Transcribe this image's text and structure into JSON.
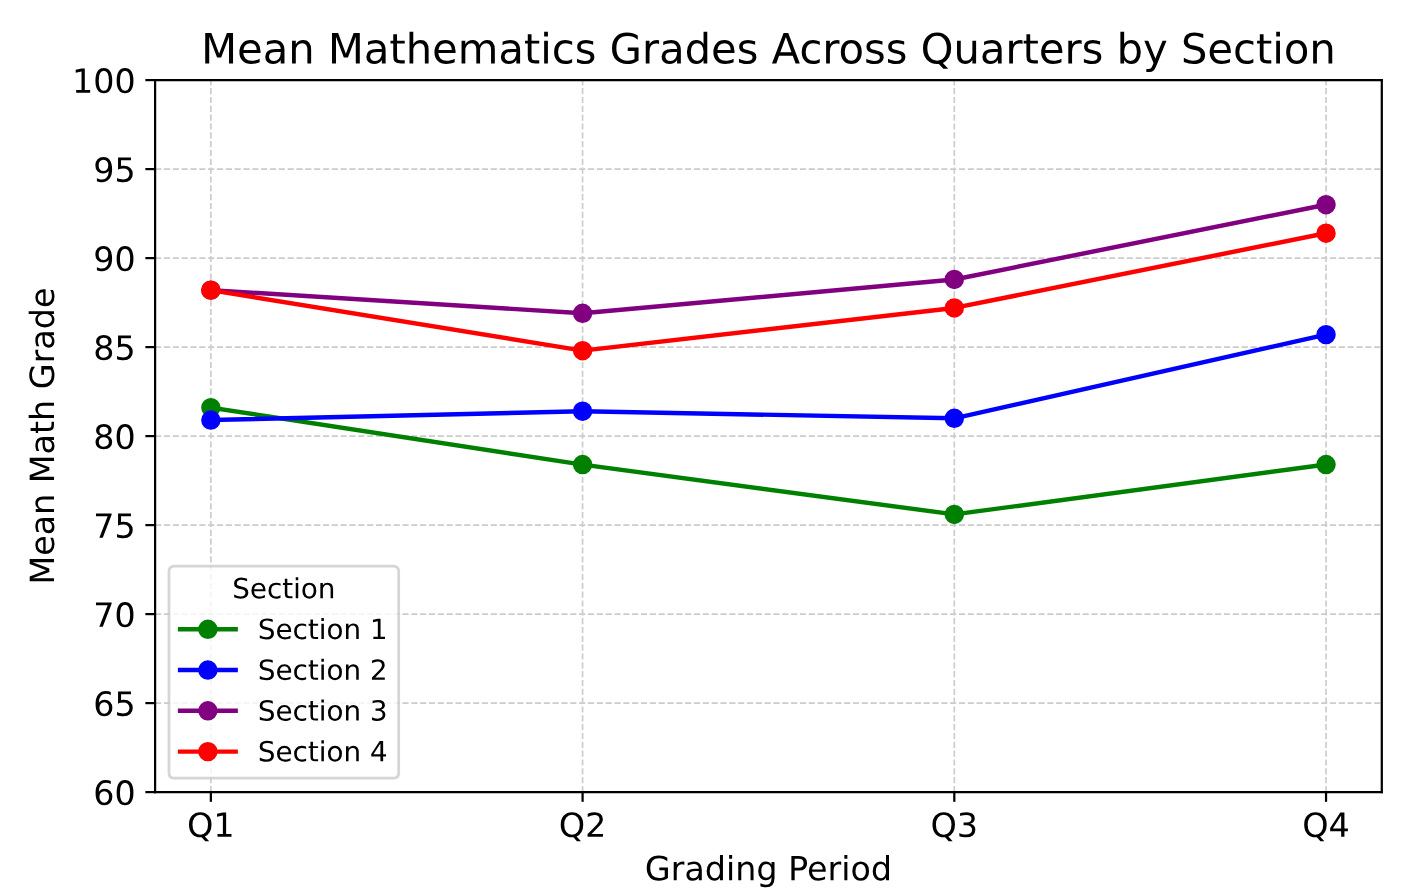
{
  "chart_data": {
    "type": "line",
    "title": "Mean Mathematics Grades Across Quarters by Section",
    "xlabel": "Grading Period",
    "ylabel": "Mean Math Grade",
    "legend_title": "Section",
    "categories": [
      "Q1",
      "Q2",
      "Q3",
      "Q4"
    ],
    "series": [
      {
        "name": "Section 1",
        "color": "#008000",
        "values": [
          81.6,
          78.4,
          75.6,
          78.4
        ]
      },
      {
        "name": "Section 2",
        "color": "#0000ff",
        "values": [
          80.9,
          81.4,
          81.0,
          85.7
        ]
      },
      {
        "name": "Section 3",
        "color": "#800080",
        "values": [
          88.2,
          86.9,
          88.8,
          93.0
        ]
      },
      {
        "name": "Section 4",
        "color": "#ff0000",
        "values": [
          88.2,
          84.8,
          87.2,
          91.4
        ]
      }
    ],
    "ylim": [
      60,
      100
    ],
    "yticks": [
      60,
      65,
      70,
      75,
      80,
      85,
      90,
      95,
      100
    ],
    "grid": true,
    "legend": "bottom left",
    "marker": "circle",
    "line_style": "solid"
  }
}
